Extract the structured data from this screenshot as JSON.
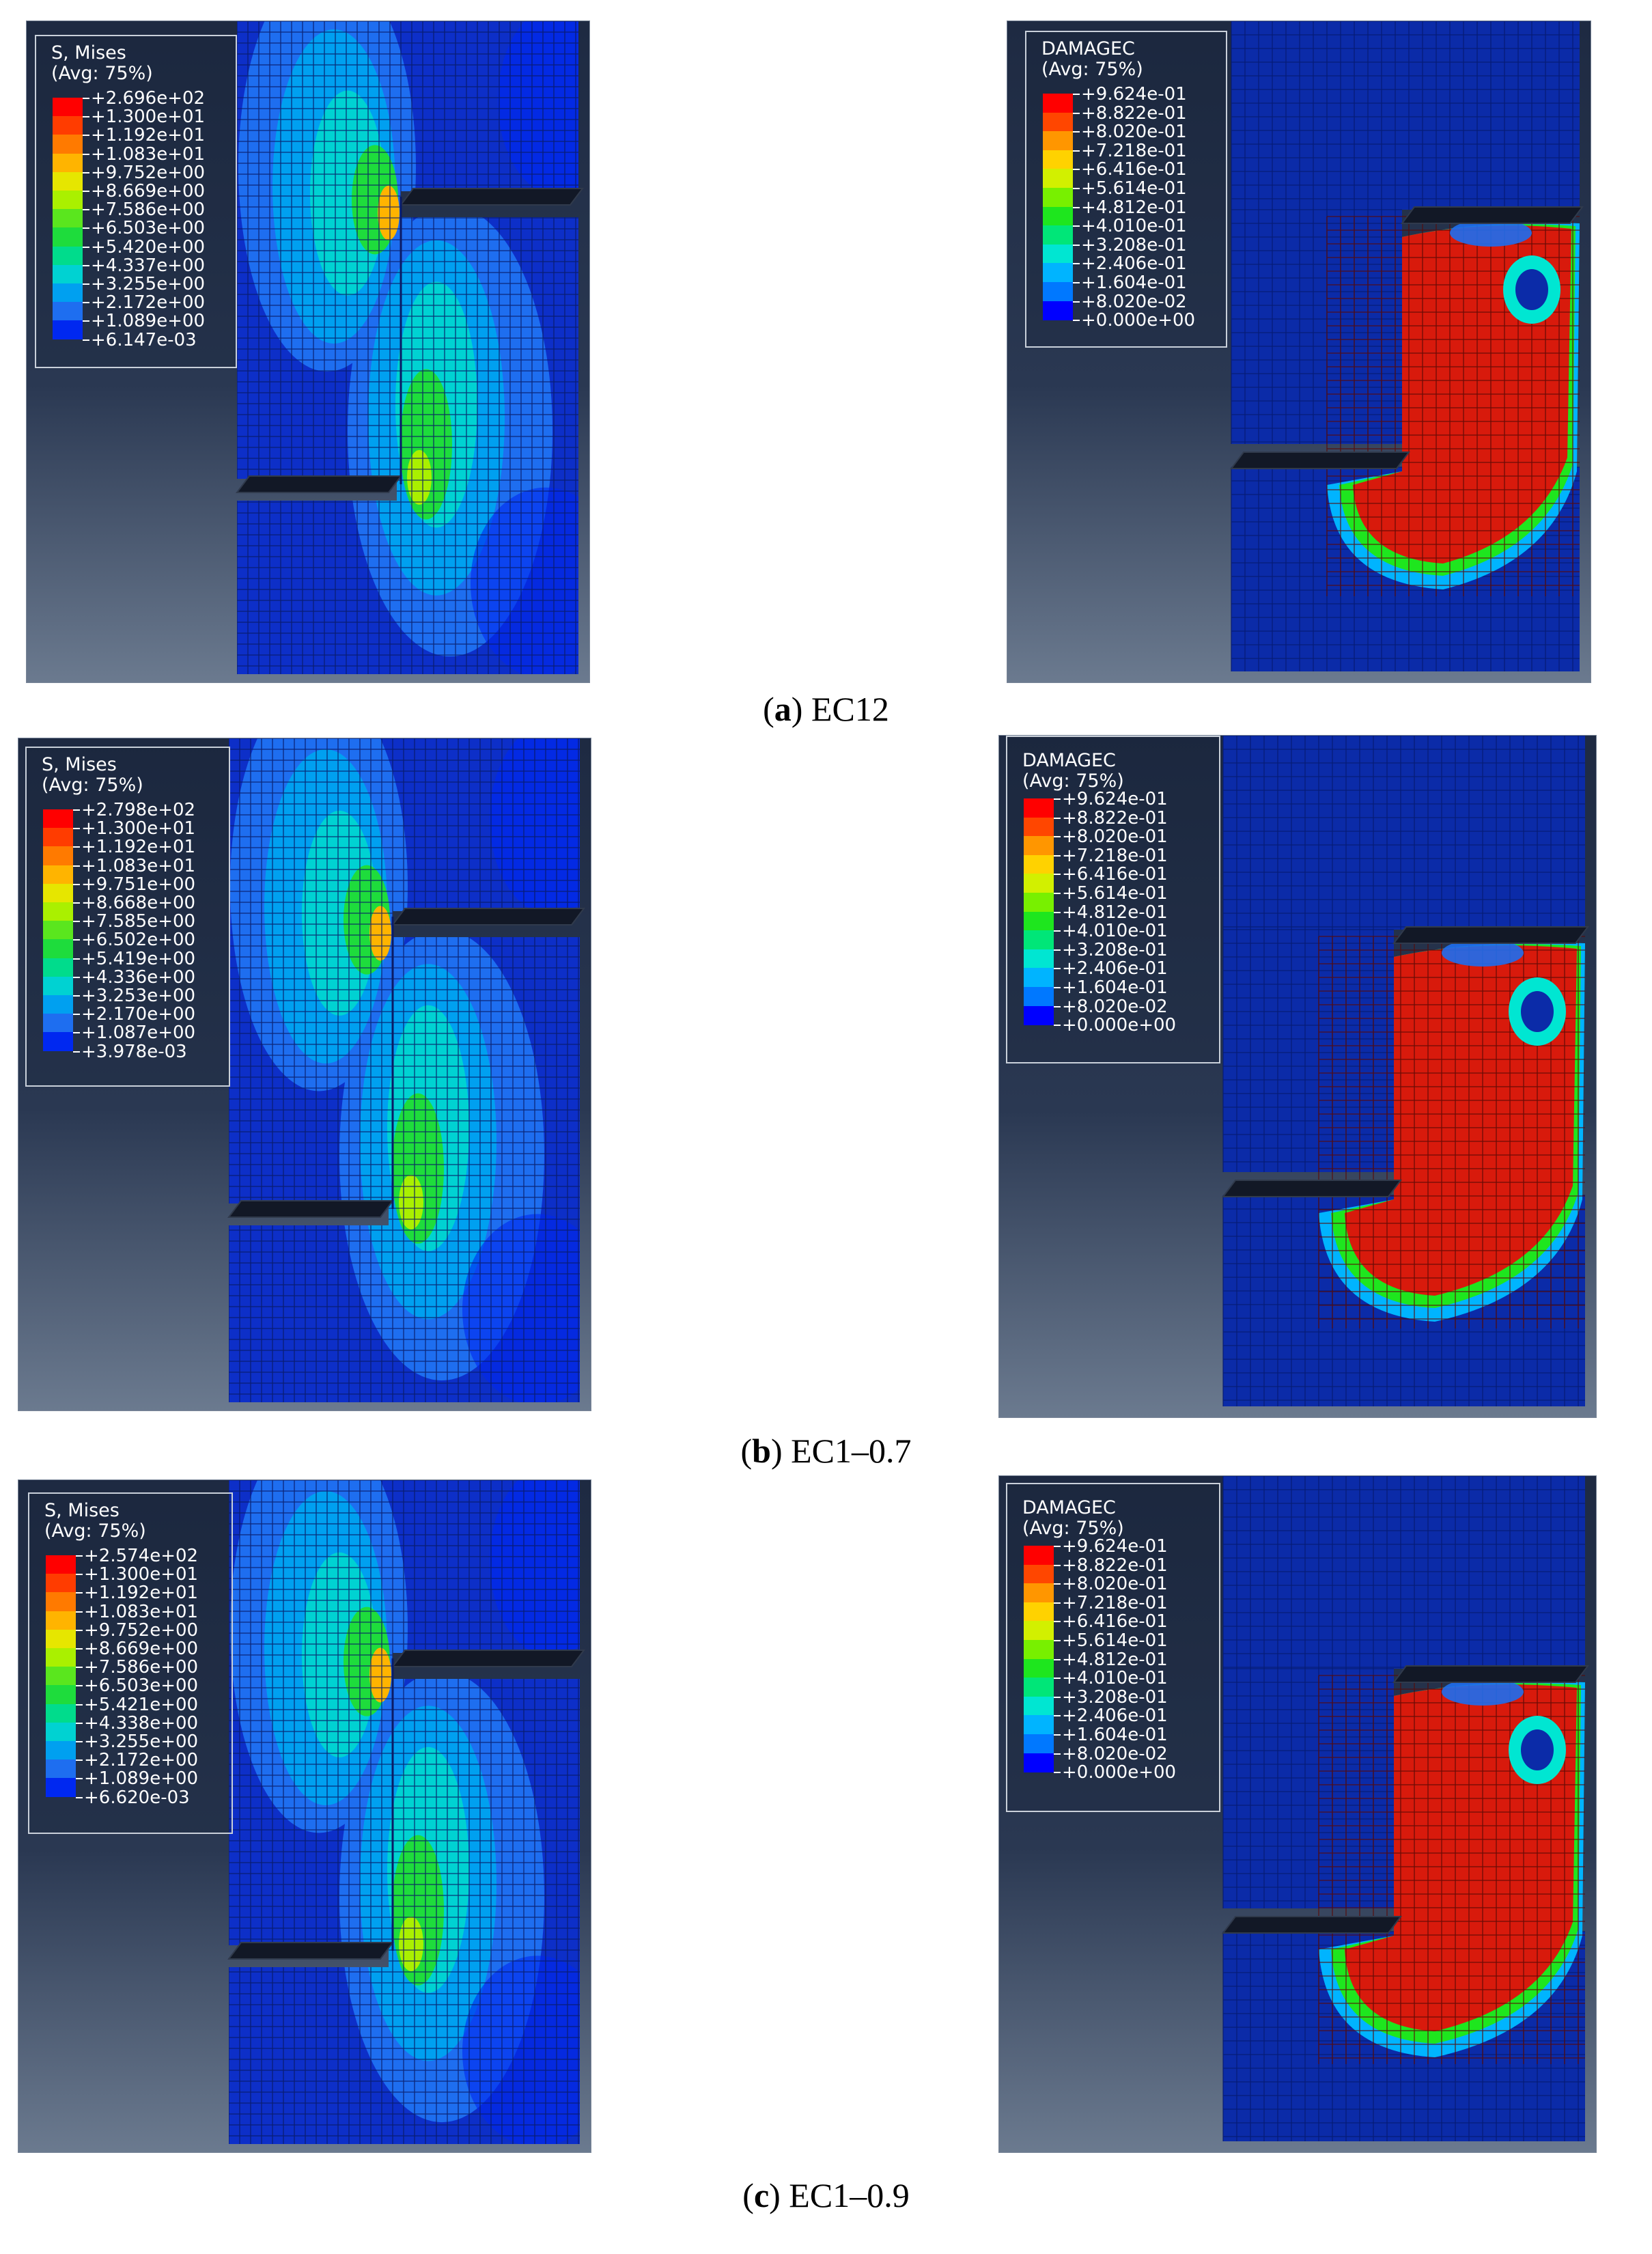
{
  "panels": [
    {
      "id": "a",
      "caption_letter": "a",
      "caption_text": "EC12",
      "stress": {
        "title": "S, Mises",
        "subtitle": "(Avg: 75%)",
        "values": [
          "+2.696e+02",
          "+1.300e+01",
          "+1.192e+01",
          "+1.083e+01",
          "+9.752e+00",
          "+8.669e+00",
          "+7.586e+00",
          "+6.503e+00",
          "+5.420e+00",
          "+4.337e+00",
          "+3.255e+00",
          "+2.172e+00",
          "+1.089e+00",
          "+6.147e-03"
        ]
      },
      "damage": {
        "title": "DAMAGEC",
        "subtitle": "(Avg: 75%)",
        "values": [
          "+9.624e-01",
          "+8.822e-01",
          "+8.020e-01",
          "+7.218e-01",
          "+6.416e-01",
          "+5.614e-01",
          "+4.812e-01",
          "+4.010e-01",
          "+3.208e-01",
          "+2.406e-01",
          "+1.604e-01",
          "+8.020e-02",
          "+0.000e+00"
        ]
      }
    },
    {
      "id": "b",
      "caption_letter": "b",
      "caption_text": "EC1–0.7",
      "stress": {
        "title": "S, Mises",
        "subtitle": "(Avg: 75%)",
        "values": [
          "+2.798e+02",
          "+1.300e+01",
          "+1.192e+01",
          "+1.083e+01",
          "+9.751e+00",
          "+8.668e+00",
          "+7.585e+00",
          "+6.502e+00",
          "+5.419e+00",
          "+4.336e+00",
          "+3.253e+00",
          "+2.170e+00",
          "+1.087e+00",
          "+3.978e-03"
        ]
      },
      "damage": {
        "title": "DAMAGEC",
        "subtitle": "(Avg: 75%)",
        "values": [
          "+9.624e-01",
          "+8.822e-01",
          "+8.020e-01",
          "+7.218e-01",
          "+6.416e-01",
          "+5.614e-01",
          "+4.812e-01",
          "+4.010e-01",
          "+3.208e-01",
          "+2.406e-01",
          "+1.604e-01",
          "+8.020e-02",
          "+0.000e+00"
        ]
      }
    },
    {
      "id": "c",
      "caption_letter": "c",
      "caption_text": "EC1–0.9",
      "stress": {
        "title": "S, Mises",
        "subtitle": "(Avg: 75%)",
        "values": [
          "+2.574e+02",
          "+1.300e+01",
          "+1.192e+01",
          "+1.083e+01",
          "+9.752e+00",
          "+8.669e+00",
          "+7.586e+00",
          "+6.503e+00",
          "+5.421e+00",
          "+4.338e+00",
          "+3.255e+00",
          "+2.172e+00",
          "+1.089e+00",
          "+6.620e-03"
        ]
      },
      "damage": {
        "title": "DAMAGEC",
        "subtitle": "(Avg: 75%)",
        "values": [
          "+9.624e-01",
          "+8.822e-01",
          "+8.020e-01",
          "+7.218e-01",
          "+6.416e-01",
          "+5.614e-01",
          "+4.812e-01",
          "+4.010e-01",
          "+3.208e-01",
          "+2.406e-01",
          "+1.604e-01",
          "+8.020e-02",
          "+0.000e+00"
        ]
      }
    }
  ],
  "colors": {
    "stress_scale": [
      "#ff0000",
      "#ff3c00",
      "#ff7a00",
      "#ffb400",
      "#e6e600",
      "#aaf000",
      "#5ae61e",
      "#1edc3c",
      "#00dc8c",
      "#00d2d2",
      "#00a0f0",
      "#1e6ef0",
      "#0028f0"
    ],
    "damage_scale": [
      "#ff0000",
      "#ff4600",
      "#ff9600",
      "#ffd200",
      "#d2f000",
      "#78f000",
      "#1ee61e",
      "#00e678",
      "#00e6d2",
      "#00b4ff",
      "#0078ff",
      "#0000ff"
    ],
    "mesh_blue": "#0b2ba8",
    "damage_red": "#d81a0c"
  }
}
